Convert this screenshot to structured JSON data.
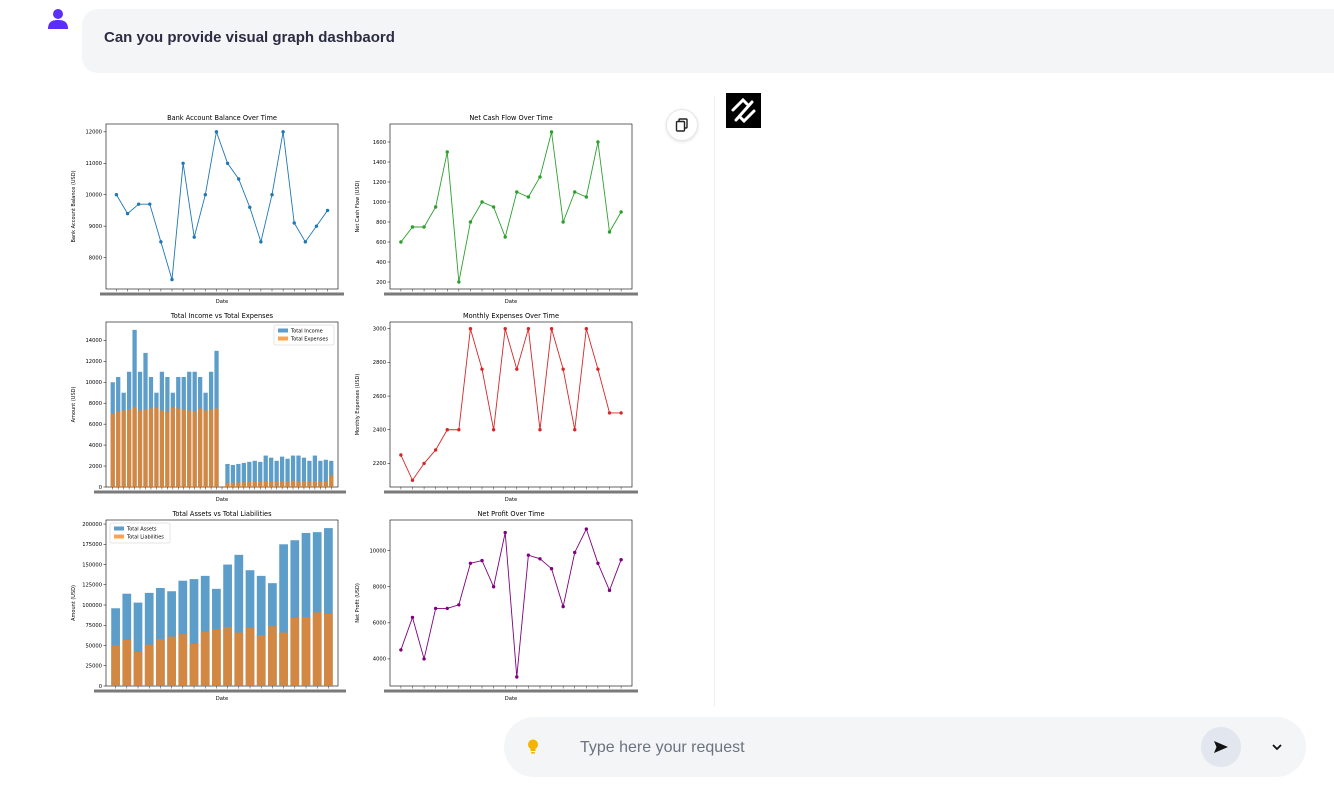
{
  "chat": {
    "user_message": "Can you provide visual graph dashbaord"
  },
  "input": {
    "placeholder": "Type here your request"
  },
  "icons": {
    "user": "user-icon",
    "copy": "copy-icon",
    "bot_logo": "bot-logo-icon",
    "bulb": "lightbulb-icon",
    "send": "send-icon",
    "chevron": "chevron-down-icon"
  },
  "colors": {
    "user_icon": "#5b2ff5",
    "bulb": "#f5b400",
    "bubble_bg": "#f4f5f7"
  },
  "chart_data": [
    {
      "type": "line",
      "title": "Bank Account Balance Over Time",
      "xlabel": "Date",
      "ylabel": "Bank Account Balance (USD)",
      "color": "#1f77b4",
      "ylim": [
        7000,
        12250
      ],
      "yticks": [
        8000,
        9000,
        10000,
        11000,
        12000
      ],
      "values": [
        10000,
        9400,
        9700,
        9700,
        8500,
        7300,
        11000,
        8650,
        10000,
        12000,
        11000,
        10500,
        9600,
        8500,
        10000,
        12000,
        9100,
        8500,
        9000,
        9500
      ]
    },
    {
      "type": "line",
      "title": "Net Cash Flow Over Time",
      "xlabel": "Date",
      "ylabel": "Net Cash Flow (USD)",
      "color": "#2ca02c",
      "ylim": [
        130,
        1780
      ],
      "yticks": [
        200,
        400,
        600,
        800,
        1000,
        1200,
        1400,
        1600
      ],
      "values": [
        600,
        750,
        750,
        950,
        1500,
        200,
        800,
        1000,
        950,
        650,
        1100,
        1050,
        1250,
        1700,
        800,
        1100,
        1050,
        1600,
        700,
        900
      ]
    },
    {
      "type": "bar",
      "title": "Total Income vs Total Expenses",
      "xlabel": "Date",
      "ylabel": "Amount (USD)",
      "ylim": [
        0,
        15750
      ],
      "yticks": [
        0,
        2000,
        4000,
        6000,
        8000,
        10000,
        12000,
        14000
      ],
      "series": [
        {
          "name": "Total Income",
          "color": "#1f77b4",
          "values": [
            10000,
            10500,
            9000,
            11000,
            15000,
            11000,
            12800,
            10500,
            9000,
            11000,
            10500,
            9000,
            10500,
            10500,
            11000,
            11000,
            10500,
            9000,
            11000,
            13000,
            0,
            2200,
            2100,
            2200,
            2300,
            2400,
            2500,
            2400,
            3000,
            2800,
            2500,
            2900,
            2700,
            3000,
            3000,
            2800,
            2500,
            3000,
            2500,
            2600,
            2500
          ]
        },
        {
          "name": "Total Expenses",
          "color": "#ff7f0e",
          "values": [
            7000,
            7200,
            7300,
            7400,
            7600,
            7300,
            7400,
            7500,
            7600,
            7300,
            7200,
            7600,
            7500,
            7400,
            7300,
            7200,
            7500,
            7300,
            7400,
            7500,
            0,
            400,
            400,
            450,
            450,
            500,
            500,
            500,
            550,
            500,
            500,
            550,
            550,
            600,
            550,
            550,
            500,
            550,
            500,
            550,
            1100
          ]
        }
      ]
    },
    {
      "type": "line",
      "title": "Monthly Expenses Over Time",
      "xlabel": "Date",
      "ylabel": "Monthly Expenses (USD)",
      "color": "#d62728",
      "ylim": [
        2060,
        3040
      ],
      "yticks": [
        2200,
        2400,
        2600,
        2800,
        3000
      ],
      "values": [
        2250,
        2100,
        2200,
        2280,
        2400,
        2400,
        3000,
        2760,
        2400,
        3000,
        2760,
        3000,
        2400,
        3000,
        2760,
        2400,
        3000,
        2760,
        2500,
        2500
      ]
    },
    {
      "type": "bar",
      "title": "Total Assets vs Total Liabilities",
      "xlabel": "Date",
      "ylabel": "Amount (USD)",
      "ylim": [
        0,
        205000
      ],
      "yticks": [
        0,
        25000,
        50000,
        75000,
        100000,
        125000,
        150000,
        175000,
        200000
      ],
      "series": [
        {
          "name": "Total Assets",
          "color": "#1f77b4",
          "values": [
            96000,
            114000,
            103000,
            115000,
            121000,
            117000,
            130000,
            132000,
            136000,
            120000,
            150000,
            162000,
            143000,
            136000,
            127000,
            175000,
            180000,
            189000,
            190000,
            195000
          ]
        },
        {
          "name": "Total Liabilities",
          "color": "#ff7f0e",
          "values": [
            50000,
            57000,
            42000,
            51000,
            58000,
            61000,
            64000,
            52000,
            67000,
            70000,
            73000,
            66000,
            72000,
            63000,
            74000,
            66000,
            84000,
            85000,
            91000,
            89000
          ]
        }
      ]
    },
    {
      "type": "line",
      "title": "Net Profit Over Time",
      "xlabel": "Date",
      "ylabel": "Net Profit (USD)",
      "color": "#800080",
      "ylim": [
        2500,
        11700
      ],
      "yticks": [
        4000,
        6000,
        8000,
        10000
      ],
      "values": [
        4500,
        6300,
        4000,
        6800,
        6800,
        7000,
        9300,
        9450,
        8000,
        11000,
        3000,
        9750,
        9550,
        9000,
        6900,
        9900,
        11200,
        9300,
        7800,
        9500
      ]
    }
  ]
}
